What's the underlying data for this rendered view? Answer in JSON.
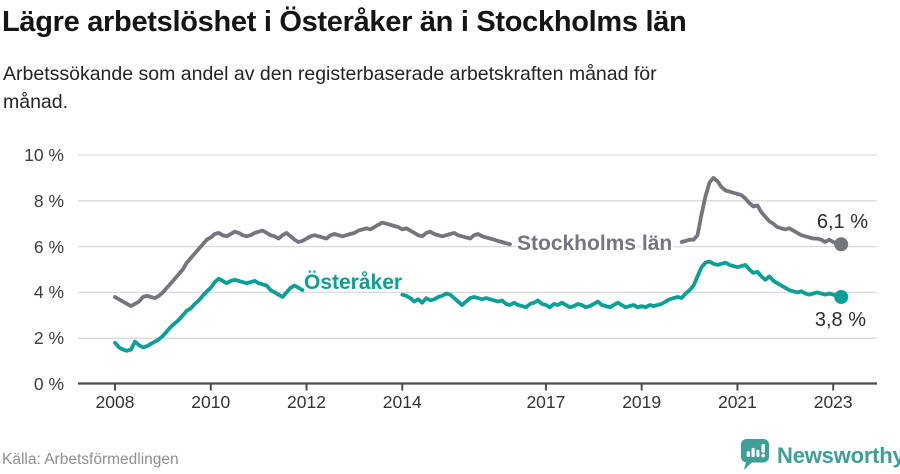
{
  "chart_data": {
    "type": "line",
    "title": "Lägre arbetslöshet i Österåker än i Stockholms län",
    "subtitle": "Arbetssökande som andel av den registerbaserade arbetskraften månad för månad.",
    "x_unit": "month",
    "x_start": "2008-01",
    "x_end": "2023-03",
    "ylim": [
      0,
      10
    ],
    "grid": "horizontal",
    "legend": "inline-labels",
    "yticks": [
      {
        "value": 0,
        "label": "0 %"
      },
      {
        "value": 2,
        "label": "2 %"
      },
      {
        "value": 4,
        "label": "4 %"
      },
      {
        "value": 6,
        "label": "6 %"
      },
      {
        "value": 8,
        "label": "8 %"
      },
      {
        "value": 10,
        "label": "10 %"
      }
    ],
    "xticks": [
      {
        "year": 2008,
        "label": "2008"
      },
      {
        "year": 2010,
        "label": "2010"
      },
      {
        "year": 2012,
        "label": "2012"
      },
      {
        "year": 2014,
        "label": "2014"
      },
      {
        "year": 2017,
        "label": "2017"
      },
      {
        "year": 2019,
        "label": "2019"
      },
      {
        "year": 2021,
        "label": "2021"
      },
      {
        "year": 2023,
        "label": "2023"
      }
    ],
    "series": [
      {
        "name": "Stockholms län",
        "slug": "stockholms-lan",
        "color": "#75757d",
        "end_value": 6.1,
        "end_label": "6,1 %",
        "inline_label_hidden_months": [
          100,
          141
        ],
        "values": [
          3.8,
          3.7,
          3.6,
          3.5,
          3.4,
          3.5,
          3.6,
          3.8,
          3.85,
          3.8,
          3.75,
          3.85,
          4.0,
          4.2,
          4.4,
          4.6,
          4.8,
          5.0,
          5.3,
          5.5,
          5.7,
          5.9,
          6.1,
          6.3,
          6.4,
          6.55,
          6.6,
          6.5,
          6.45,
          6.55,
          6.65,
          6.6,
          6.5,
          6.45,
          6.5,
          6.6,
          6.65,
          6.7,
          6.6,
          6.5,
          6.45,
          6.35,
          6.5,
          6.6,
          6.45,
          6.3,
          6.2,
          6.25,
          6.35,
          6.45,
          6.5,
          6.45,
          6.4,
          6.35,
          6.5,
          6.55,
          6.5,
          6.45,
          6.5,
          6.55,
          6.6,
          6.7,
          6.75,
          6.8,
          6.75,
          6.85,
          6.95,
          7.05,
          7.0,
          6.95,
          6.9,
          6.85,
          6.75,
          6.8,
          6.7,
          6.6,
          6.5,
          6.45,
          6.6,
          6.65,
          6.55,
          6.5,
          6.45,
          6.5,
          6.55,
          6.6,
          6.5,
          6.45,
          6.4,
          6.35,
          6.5,
          6.55,
          6.45,
          6.4,
          6.35,
          6.3,
          6.25,
          6.2,
          6.15,
          6.1,
          6.05,
          6.0,
          6.05,
          6.1,
          6.0,
          5.95,
          5.9,
          5.95,
          6.0,
          6.05,
          6.0,
          5.95,
          5.9,
          5.85,
          5.95,
          6.05,
          6.0,
          5.95,
          5.9,
          5.95,
          6.0,
          6.05,
          6.0,
          5.9,
          5.85,
          5.8,
          5.9,
          6.0,
          5.95,
          5.9,
          5.85,
          5.9,
          5.95,
          6.0,
          5.95,
          5.9,
          5.85,
          5.9,
          6.0,
          6.05,
          6.1,
          6.15,
          6.2,
          6.25,
          6.3,
          6.3,
          6.5,
          7.4,
          8.2,
          8.8,
          9.0,
          8.85,
          8.6,
          8.45,
          8.4,
          8.35,
          8.3,
          8.25,
          8.1,
          7.9,
          7.75,
          7.8,
          7.5,
          7.3,
          7.1,
          7.0,
          6.85,
          6.8,
          6.75,
          6.8,
          6.7,
          6.6,
          6.5,
          6.45,
          6.4,
          6.35,
          6.35,
          6.3,
          6.2,
          6.3,
          6.2,
          6.15,
          6.1
        ]
      },
      {
        "name": "Österåker",
        "slug": "osteraker",
        "color": "#0aa096",
        "end_value": 3.8,
        "end_label": "3,8 %",
        "inline_label_hidden_months": [
          48,
          71
        ],
        "values": [
          1.8,
          1.6,
          1.5,
          1.45,
          1.5,
          1.85,
          1.7,
          1.6,
          1.65,
          1.75,
          1.85,
          1.95,
          2.1,
          2.3,
          2.5,
          2.65,
          2.8,
          3.0,
          3.2,
          3.3,
          3.5,
          3.65,
          3.85,
          4.05,
          4.2,
          4.45,
          4.6,
          4.5,
          4.4,
          4.5,
          4.55,
          4.5,
          4.45,
          4.4,
          4.45,
          4.5,
          4.4,
          4.35,
          4.3,
          4.1,
          4.0,
          3.9,
          3.8,
          4.0,
          4.2,
          4.3,
          4.2,
          4.1,
          4.1,
          4.15,
          4.2,
          4.15,
          4.1,
          4.05,
          4.15,
          4.2,
          4.1,
          4.0,
          3.95,
          4.0,
          4.0,
          4.05,
          4.0,
          3.95,
          3.9,
          3.85,
          3.95,
          4.0,
          3.95,
          3.9,
          3.85,
          3.9,
          3.9,
          3.85,
          3.75,
          3.6,
          3.7,
          3.55,
          3.75,
          3.65,
          3.7,
          3.8,
          3.85,
          3.95,
          3.9,
          3.75,
          3.6,
          3.45,
          3.6,
          3.75,
          3.8,
          3.75,
          3.7,
          3.75,
          3.7,
          3.65,
          3.6,
          3.65,
          3.5,
          3.45,
          3.55,
          3.45,
          3.4,
          3.35,
          3.5,
          3.55,
          3.65,
          3.5,
          3.45,
          3.35,
          3.5,
          3.45,
          3.55,
          3.45,
          3.35,
          3.4,
          3.5,
          3.45,
          3.35,
          3.4,
          3.5,
          3.6,
          3.45,
          3.4,
          3.35,
          3.45,
          3.55,
          3.45,
          3.35,
          3.4,
          3.45,
          3.35,
          3.4,
          3.35,
          3.45,
          3.4,
          3.45,
          3.5,
          3.6,
          3.7,
          3.75,
          3.8,
          3.75,
          3.95,
          4.1,
          4.3,
          4.7,
          5.1,
          5.3,
          5.35,
          5.25,
          5.2,
          5.25,
          5.3,
          5.2,
          5.15,
          5.1,
          5.15,
          5.2,
          5.0,
          4.85,
          4.9,
          4.7,
          4.55,
          4.7,
          4.5,
          4.4,
          4.3,
          4.2,
          4.1,
          4.05,
          4.0,
          4.05,
          3.95,
          3.9,
          3.95,
          4.0,
          3.95,
          3.9,
          3.95,
          3.9,
          3.85,
          3.8
        ]
      }
    ]
  },
  "footer": {
    "source": "Källa: Arbetsförmedlingen",
    "brand": "Newsworthy",
    "brand_color": "#3f9e98",
    "logo_icon": "bar-chart-speech-bubble"
  }
}
